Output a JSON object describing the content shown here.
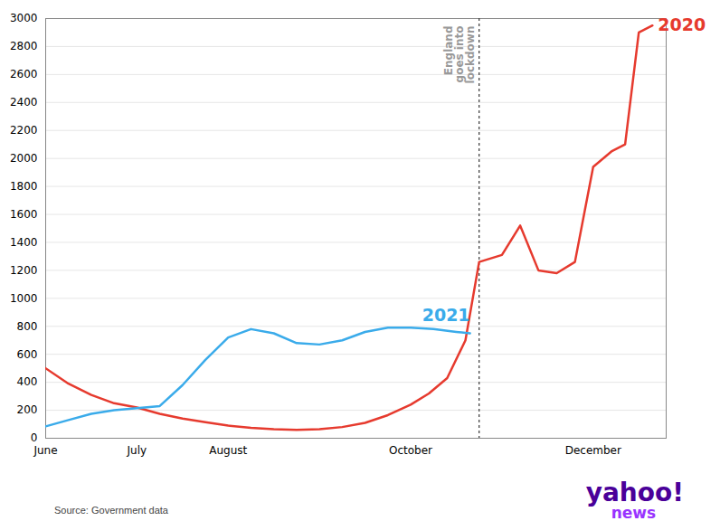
{
  "chart_data": {
    "type": "line",
    "series": [
      {
        "name": "2020",
        "color": "#e63a2e",
        "x": [
          0,
          0.25,
          0.5,
          0.75,
          1.0,
          1.25,
          1.5,
          1.75,
          2.0,
          2.25,
          2.5,
          2.75,
          3.0,
          3.25,
          3.5,
          3.75,
          4.0,
          4.2,
          4.4,
          4.6,
          4.75,
          5.0,
          5.2,
          5.4,
          5.6,
          5.8,
          6.0,
          6.2,
          6.35,
          6.5,
          6.65
        ],
        "values": [
          500,
          390,
          310,
          250,
          220,
          175,
          140,
          115,
          90,
          75,
          65,
          60,
          65,
          80,
          110,
          165,
          240,
          320,
          430,
          700,
          1260,
          1310,
          1520,
          1200,
          1180,
          1260,
          1940,
          2050,
          2100,
          2900,
          2950
        ]
      },
      {
        "name": "2021",
        "color": "#3aabea",
        "x": [
          0,
          0.25,
          0.5,
          0.75,
          1.0,
          1.25,
          1.5,
          1.75,
          2.0,
          2.25,
          2.5,
          2.75,
          3.0,
          3.25,
          3.5,
          3.75,
          4.0,
          4.25,
          4.5,
          4.65
        ],
        "values": [
          85,
          130,
          175,
          200,
          215,
          230,
          380,
          560,
          720,
          780,
          750,
          680,
          670,
          700,
          760,
          790,
          790,
          780,
          760,
          750
        ]
      }
    ],
    "xlim": [
      0,
      6.8
    ],
    "xticks": [
      {
        "value": 0,
        "label": "June"
      },
      {
        "value": 1.0,
        "label": "July"
      },
      {
        "value": 2.0,
        "label": "August"
      },
      {
        "value": 4.0,
        "label": "October"
      },
      {
        "value": 6.0,
        "label": "December"
      }
    ],
    "ylim": [
      0,
      3000
    ],
    "yticks": [
      0,
      200,
      400,
      600,
      800,
      1000,
      1200,
      1400,
      1600,
      1800,
      2000,
      2200,
      2400,
      2600,
      2800,
      3000
    ],
    "grid": true,
    "annotations": [
      {
        "type": "vline",
        "x": 4.75,
        "text": "England\ngoes into\nlockdown",
        "color": "#444444",
        "text_color": "#999999"
      }
    ],
    "caption": "Source: Government data",
    "logo": {
      "text": "yahoo!",
      "subtext": "news",
      "color": "#4a0099",
      "subcolor": "#9933ff"
    }
  }
}
